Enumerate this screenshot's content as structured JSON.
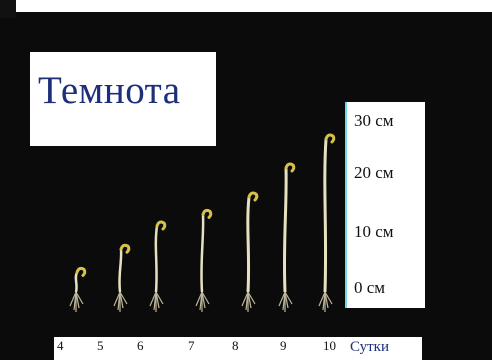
{
  "title": "Темнота",
  "scale_labels": [
    "30 см",
    "20 см",
    "10 см",
    "0 см"
  ],
  "days": [
    "4",
    "5",
    "6",
    "7",
    "8",
    "9",
    "10"
  ],
  "unit_label": "Сутки",
  "colors": {
    "background": "#0b0b0b",
    "title_text": "#1d2f79",
    "stem": "#e6e2bf",
    "hook": "#d8c14a",
    "root": "#bdb59a"
  },
  "seedlings": [
    {
      "day": "4",
      "height_cm": 2
    },
    {
      "day": "5",
      "height_cm": 6
    },
    {
      "day": "6",
      "height_cm": 10
    },
    {
      "day": "7",
      "height_cm": 12
    },
    {
      "day": "8",
      "height_cm": 15
    },
    {
      "day": "9",
      "height_cm": 20
    },
    {
      "day": "10",
      "height_cm": 25
    }
  ]
}
